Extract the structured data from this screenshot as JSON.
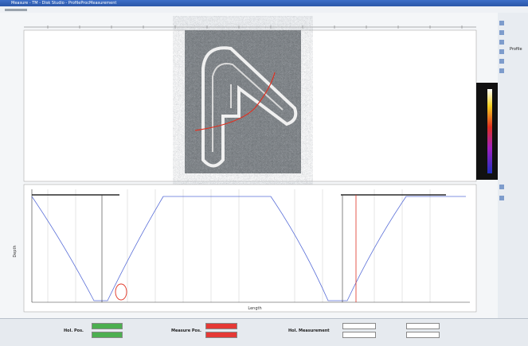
{
  "window": {
    "title": "Measure - TM - Disk Studio - ProfileProcMeasurement"
  },
  "profile_chart": {
    "y_axis_label": "Depth",
    "x_axis_label": "Length"
  },
  "side_panel": {
    "profile": "Profile"
  },
  "status": {
    "hol_pos": "Hol. Pos.",
    "measure_pos": "Measure Pos.",
    "hol_measurement": "Hol. Measurement"
  }
}
